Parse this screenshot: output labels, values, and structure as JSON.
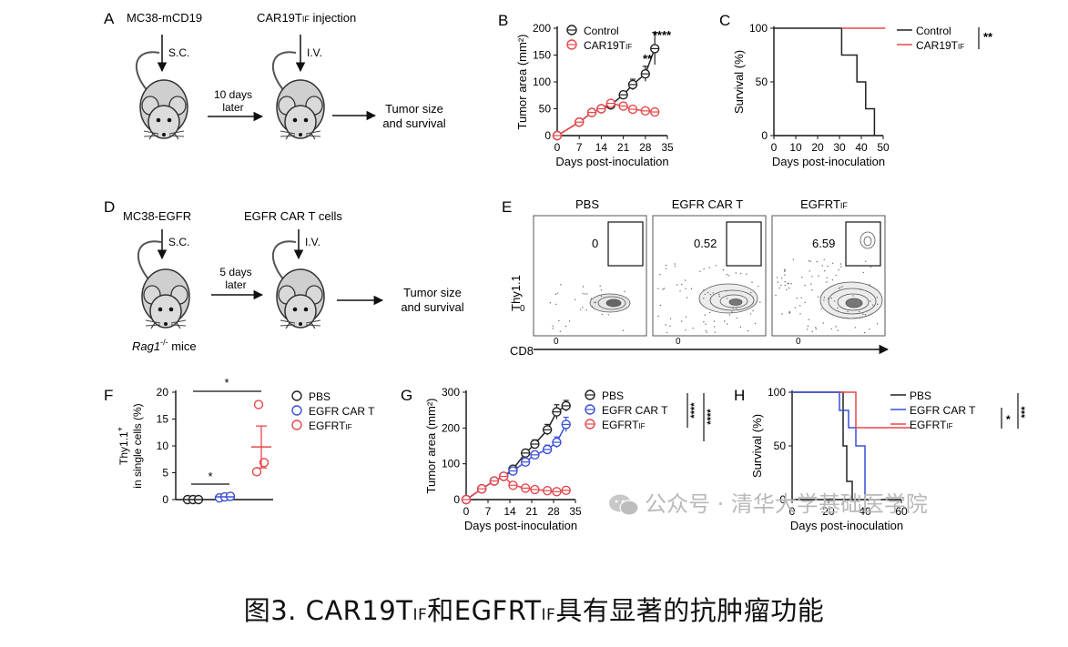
{
  "panelA": {
    "letter": "A",
    "cell_line": "MC38-mCD19",
    "route1": "S.C.",
    "injection": "CAR19T",
    "injection_sub": "IF",
    "injection_suffix": " injection",
    "route2": "I.V.",
    "wait1": "10 days",
    "wait2": "later",
    "outcome1": "Tumor size",
    "outcome2": "and survival"
  },
  "panelD": {
    "letter": "D",
    "cell_line": "MC38-EGFR",
    "route1": "S.C.",
    "injection": "EGFR CAR T cells",
    "route2": "I.V.",
    "wait1": "5 days",
    "wait2": "later",
    "outcome1": "Tumor size",
    "outcome2": "and survival",
    "mouse_label": "Rag1",
    "mouse_sup": "-/-",
    "mouse_suffix": " mice"
  },
  "panelE": {
    "letter": "E",
    "titles": [
      "PBS",
      "EGFR CAR T",
      "EGFRT"
    ],
    "title3_sub": "IF",
    "gate_values": [
      "0",
      "0.52",
      "6.59"
    ],
    "ylabel": "Thy1.1",
    "xlabel": "CD8",
    "zero": "0"
  },
  "colors": {
    "control": "#222222",
    "red": "#e8474b",
    "blue": "#3b4fd8"
  },
  "chart_data": [
    {
      "panel": "B",
      "type": "line",
      "xlabel": "Days post-inoculation",
      "ylabel": "Tumor area (mm²)",
      "xlim": [
        0,
        35
      ],
      "ylim": [
        0,
        200
      ],
      "xticks": [
        0,
        7,
        14,
        21,
        28,
        35
      ],
      "yticks": [
        0,
        50,
        100,
        150,
        200
      ],
      "legend": [
        {
          "name": "Control"
        },
        {
          "name": "CAR19T",
          "sub": "IF"
        }
      ],
      "sig_labels": [
        "****",
        "**"
      ],
      "series": [
        {
          "name": "Control",
          "color": "#222222",
          "x": [
            0,
            7,
            11,
            14,
            17,
            21,
            24,
            28,
            31
          ],
          "y": [
            0,
            25,
            43,
            50,
            57,
            76,
            95,
            115,
            162
          ],
          "err": [
            0,
            2,
            3,
            3,
            4,
            6,
            10,
            14,
            30
          ]
        },
        {
          "name": "CAR19T",
          "color": "#e8474b",
          "x": [
            0,
            7,
            11,
            14,
            17,
            21,
            24,
            28,
            31
          ],
          "y": [
            0,
            25,
            43,
            50,
            60,
            55,
            49,
            46,
            44
          ],
          "err": [
            0,
            2,
            3,
            3,
            6,
            4,
            3,
            3,
            3
          ]
        }
      ]
    },
    {
      "panel": "C",
      "type": "line",
      "xlabel": "Days post-inoculation",
      "ylabel": "Survival (%)",
      "xlim": [
        0,
        50
      ],
      "ylim": [
        0,
        100
      ],
      "xticks": [
        0,
        10,
        20,
        30,
        40,
        50
      ],
      "yticks": [
        0,
        50,
        100
      ],
      "legend": [
        {
          "name": "Control"
        },
        {
          "name": "CAR19T",
          "sub": "IF"
        }
      ],
      "sig_labels": [
        "**"
      ],
      "series": [
        {
          "name": "Control",
          "color": "#222222",
          "x": [
            0,
            31,
            31,
            38,
            38,
            42,
            42,
            46,
            46
          ],
          "y": [
            100,
            100,
            75,
            75,
            50,
            50,
            25,
            25,
            0
          ]
        },
        {
          "name": "CAR19T",
          "color": "#e8474b",
          "x": [
            31,
            51
          ],
          "y": [
            100,
            100
          ]
        }
      ]
    },
    {
      "panel": "F",
      "type": "scatter",
      "ylabel1": "Thy1.1",
      "ylabel1_sup": "+",
      "ylabel2": "in single cells (%)",
      "ylim": [
        0,
        20
      ],
      "yticks": [
        0,
        5,
        10,
        15,
        20
      ],
      "categories": [
        "PBS",
        "EGFR CAR T",
        "EGFRT"
      ],
      "legend": [
        {
          "name": "PBS"
        },
        {
          "name": "EGFR CAR T"
        },
        {
          "name": "EGFRT",
          "sub": "IF"
        }
      ],
      "sig_labels": [
        "*",
        "*"
      ],
      "series": [
        {
          "name": "PBS",
          "color": "#222222",
          "values": [
            0,
            0,
            0
          ],
          "mean": 0
        },
        {
          "name": "EGFR CAR T",
          "color": "#3b4fd8",
          "values": [
            0.3,
            0.5,
            0.6
          ],
          "mean": 0.5
        },
        {
          "name": "EGFRT",
          "color": "#e8474b",
          "values": [
            17.7,
            6.9,
            5.2
          ],
          "mean": 9.8,
          "sem": 3.9
        }
      ]
    },
    {
      "panel": "G",
      "type": "line",
      "xlabel": "Days post-inoculation",
      "ylabel": "Tumor area (mm²)",
      "xlim": [
        0,
        35
      ],
      "ylim": [
        0,
        300
      ],
      "xticks": [
        0,
        7,
        14,
        21,
        28,
        35
      ],
      "yticks": [
        0,
        100,
        200,
        300
      ],
      "legend": [
        {
          "name": "PBS"
        },
        {
          "name": "EGFR CAR T"
        },
        {
          "name": "EGFRT",
          "sub": "IF"
        }
      ],
      "sig_labels": [
        "****",
        "****"
      ],
      "series": [
        {
          "name": "PBS",
          "color": "#222222",
          "x": [
            0,
            5,
            9,
            12,
            15,
            19,
            22,
            26,
            29,
            32
          ],
          "y": [
            0,
            30,
            52,
            65,
            85,
            130,
            155,
            195,
            245,
            262
          ],
          "err": [
            0,
            3,
            4,
            6,
            8,
            10,
            12,
            15,
            20,
            15
          ]
        },
        {
          "name": "EGFR CAR T",
          "color": "#3b4fd8",
          "x": [
            0,
            5,
            9,
            12,
            15,
            19,
            22,
            26,
            29,
            32
          ],
          "y": [
            0,
            30,
            52,
            65,
            80,
            105,
            125,
            140,
            160,
            210
          ],
          "err": [
            0,
            3,
            4,
            6,
            8,
            10,
            10,
            12,
            15,
            20
          ]
        },
        {
          "name": "EGFRT",
          "color": "#e8474b",
          "x": [
            0,
            5,
            9,
            12,
            15,
            19,
            22,
            26,
            29,
            32
          ],
          "y": [
            0,
            30,
            52,
            65,
            40,
            32,
            28,
            25,
            22,
            26
          ],
          "err": [
            0,
            3,
            4,
            5,
            5,
            4,
            4,
            4,
            4,
            6
          ]
        }
      ]
    },
    {
      "panel": "H",
      "type": "line",
      "xlabel": "Days post-inoculation",
      "ylabel": "Survival (%)",
      "xlim": [
        0,
        60
      ],
      "ylim": [
        0,
        100
      ],
      "xticks": [
        0,
        20,
        40,
        60
      ],
      "yticks": [
        0,
        50,
        100
      ],
      "legend": [
        {
          "name": "PBS"
        },
        {
          "name": "EGFR CAR T"
        },
        {
          "name": "EGFRT",
          "sub": "IF"
        }
      ],
      "sig_labels": [
        "*",
        "***"
      ],
      "series": [
        {
          "name": "PBS",
          "color": "#222222",
          "x": [
            0,
            28,
            28,
            30,
            30,
            33,
            33
          ],
          "y": [
            100,
            100,
            50,
            50,
            17,
            17,
            0
          ]
        },
        {
          "name": "EGFR CAR T",
          "color": "#3b4fd8",
          "x": [
            0,
            26,
            26,
            31,
            31,
            35,
            35,
            40,
            40
          ],
          "y": [
            100,
            100,
            83,
            83,
            67,
            67,
            50,
            50,
            0
          ]
        },
        {
          "name": "EGFRT",
          "color": "#e8474b",
          "x": [
            26,
            35,
            35,
            65
          ],
          "y": [
            100,
            100,
            67,
            67
          ]
        }
      ]
    }
  ],
  "watermark": "公众号 · 清华大学基础医学院",
  "caption": {
    "prefix": "图3. CAR19T",
    "sub1": "IF",
    "mid": "和EGFRT",
    "sub2": "IF",
    "suffix": "具有显著的抗肿瘤功能"
  }
}
